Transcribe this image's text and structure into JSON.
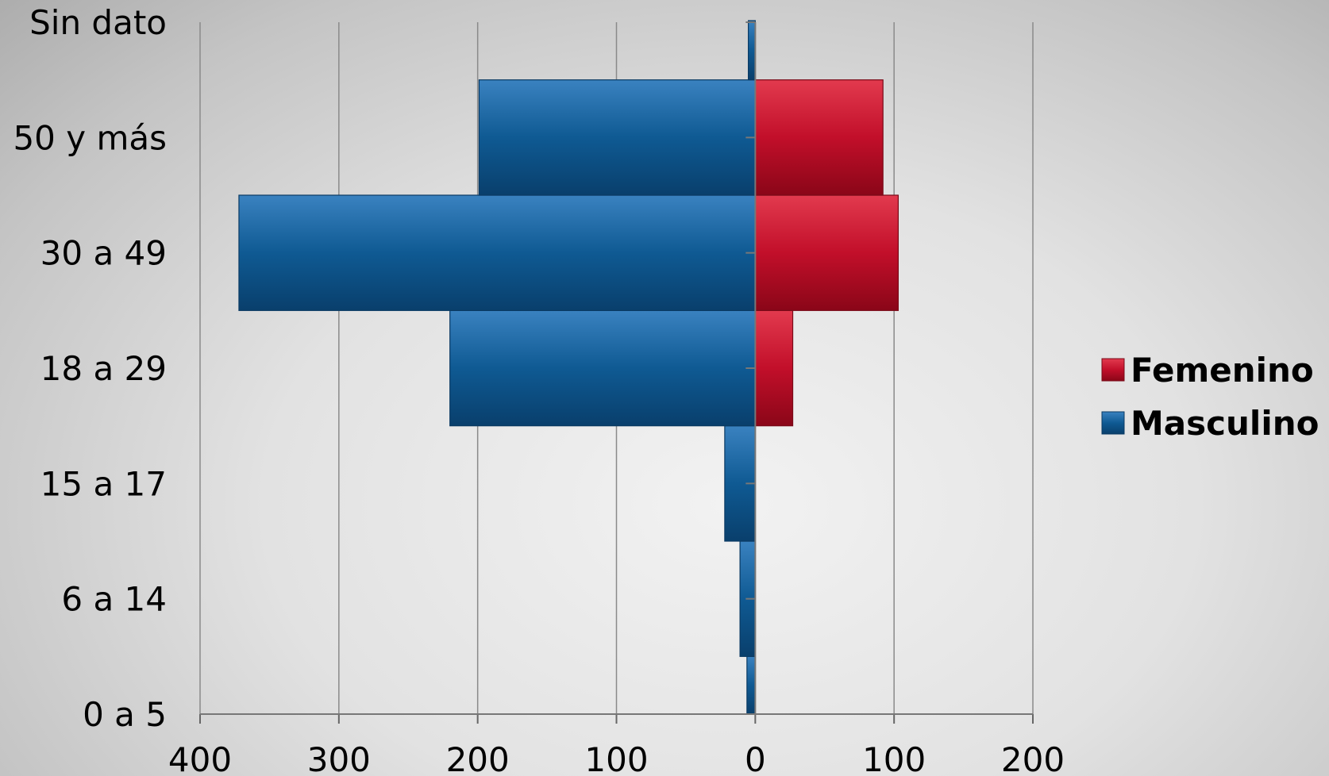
{
  "chart_data": {
    "type": "bar",
    "orientation": "horizontal",
    "categories": [
      "0 a 5",
      "6 a 14",
      "15 a 17",
      "18 a 29",
      "30 a 49",
      "50 y más",
      "Sin dato"
    ],
    "series": [
      {
        "name": "Femenino",
        "values": [
          0,
          0,
          0,
          27,
          103,
          92,
          0
        ],
        "color": "#c8102e"
      },
      {
        "name": "Masculino",
        "values": [
          -6,
          -11,
          -22,
          -220,
          -372,
          -199,
          -5
        ],
        "color": "#1a5a94"
      }
    ],
    "x_ticks": [
      -400,
      -300,
      -200,
      -100,
      0,
      100,
      200
    ],
    "x_tick_labels": [
      "400",
      "300",
      "200",
      "100",
      "0",
      "100",
      "200"
    ],
    "xlim": [
      -400,
      200
    ],
    "grid": "vertical",
    "legend": "right",
    "title": "",
    "xlabel": "",
    "ylabel": ""
  }
}
